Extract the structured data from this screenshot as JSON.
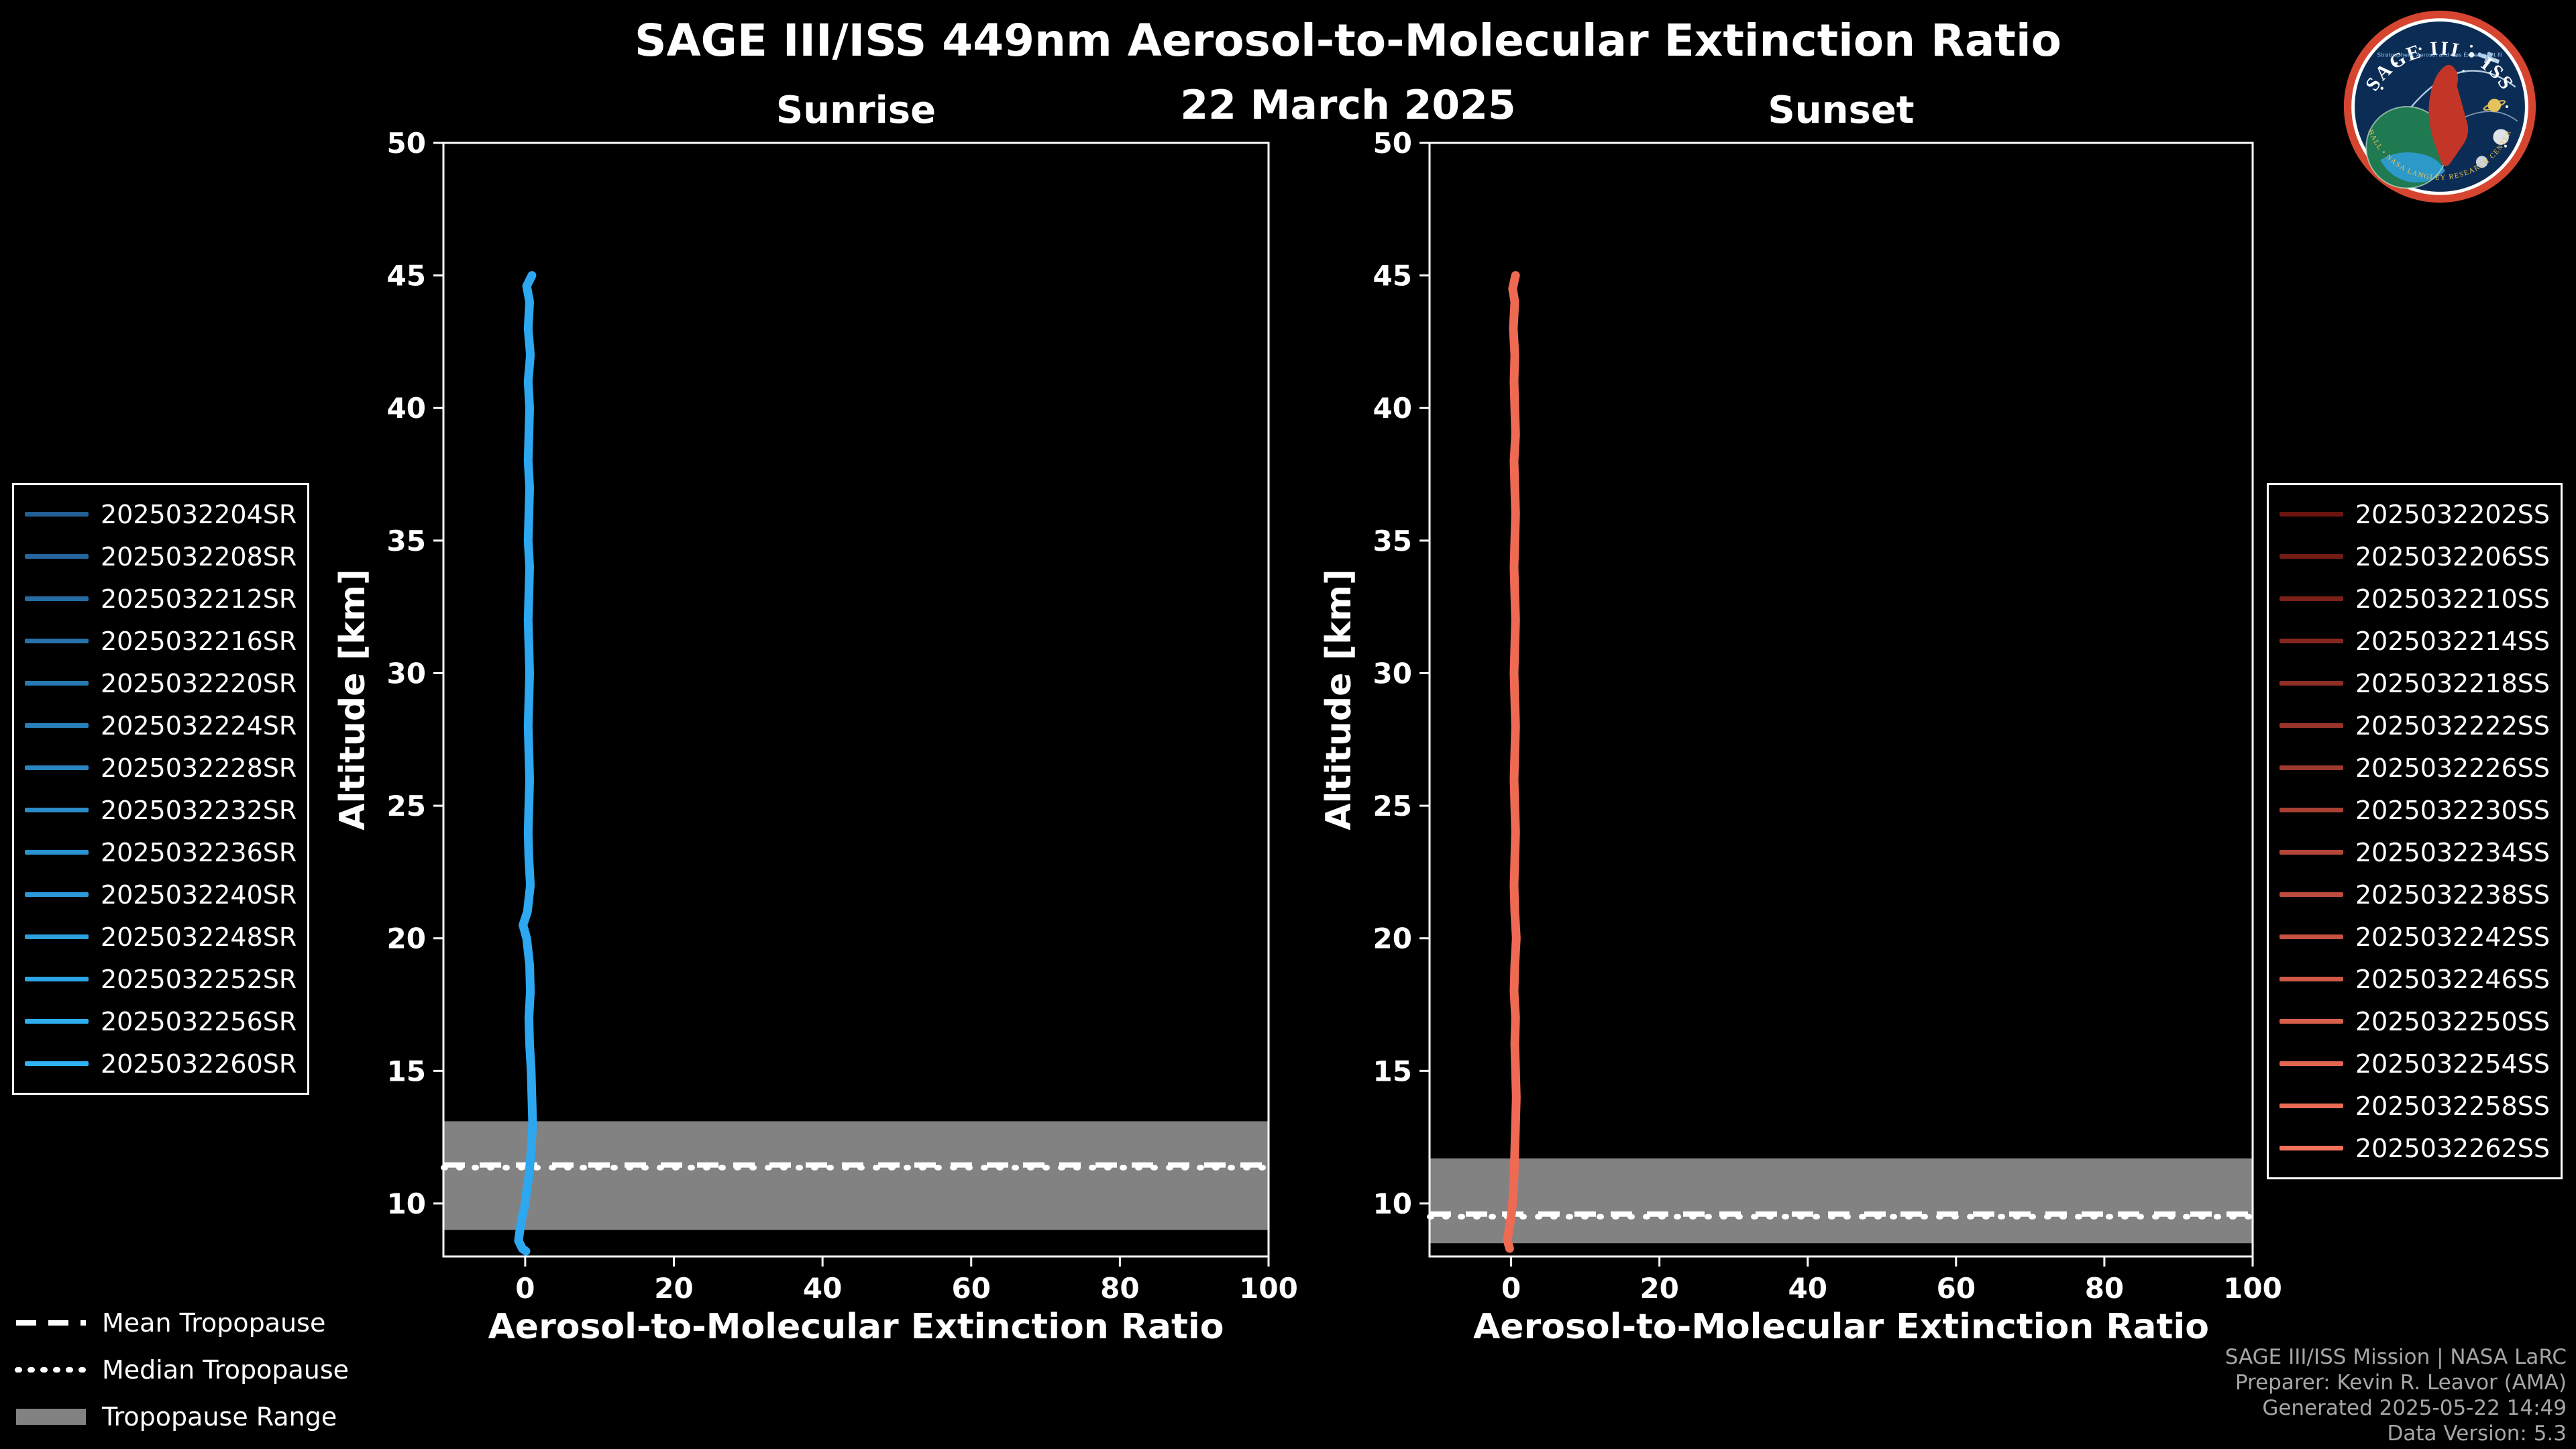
{
  "page": {
    "title": "SAGE III/ISS 449nm Aerosol-to-Molecular Extinction Ratio",
    "subtitle": "22 March 2025",
    "background": "#000000"
  },
  "style": {
    "band_color": "#828282",
    "axis_color": "#ffffff",
    "text_color": "#ffffff",
    "credit_color": "#a6a6a6"
  },
  "logo": {
    "title": "SAGE III • ISS",
    "subtitle": "Stratospheric Aerosol and Gas Experiment III",
    "ring_text": "BALL • NASA LANGLEY RESEARCH CENTER"
  },
  "tropopause_legend": {
    "mean_label": "Mean Tropopause",
    "median_label": "Median Tropopause",
    "range_label": "Tropopause Range"
  },
  "credits": {
    "lines": [
      "SAGE III/ISS Mission | NASA LaRC",
      "Preparer: Kevin R. Leavor (AMA)",
      "Generated 2025-05-22 14:49",
      "Data Version: 5.3"
    ]
  },
  "chart_data": [
    {
      "id": "sunrise",
      "type": "line",
      "title": "Sunrise",
      "xlabel": "Aerosol-to-Molecular Extinction Ratio",
      "ylabel": "Altitude [km]",
      "xlim": [
        -11,
        100
      ],
      "ylim": [
        8,
        50
      ],
      "xticks": [
        0,
        20,
        40,
        60,
        80,
        100
      ],
      "yticks": [
        10,
        15,
        20,
        25,
        30,
        35,
        40,
        45,
        50
      ],
      "grid": false,
      "legend_position": "outside-left",
      "series_names": [
        "2025032204SR",
        "2025032208SR",
        "2025032212SR",
        "2025032216SR",
        "2025032220SR",
        "2025032224SR",
        "2025032228SR",
        "2025032232SR",
        "2025032236SR",
        "2025032240SR",
        "2025032248SR",
        "2025032252SR",
        "2025032256SR",
        "2025032260SR"
      ],
      "series_color_start": "#235f93",
      "series_color_end": "#2fb2f6",
      "profile_color": "#2da7f0",
      "profile": [
        [
          45.0,
          0.9
        ],
        [
          44.6,
          0.2
        ],
        [
          44.0,
          0.6
        ],
        [
          43.0,
          0.4
        ],
        [
          42.0,
          0.7
        ],
        [
          41.0,
          0.4
        ],
        [
          40.0,
          0.6
        ],
        [
          39.0,
          0.5
        ],
        [
          38.0,
          0.4
        ],
        [
          37.0,
          0.6
        ],
        [
          36.0,
          0.5
        ],
        [
          35.0,
          0.4
        ],
        [
          34.0,
          0.6
        ],
        [
          33.0,
          0.5
        ],
        [
          32.0,
          0.4
        ],
        [
          31.0,
          0.5
        ],
        [
          30.0,
          0.6
        ],
        [
          29.0,
          0.5
        ],
        [
          28.0,
          0.4
        ],
        [
          27.0,
          0.5
        ],
        [
          26.0,
          0.6
        ],
        [
          25.0,
          0.5
        ],
        [
          24.0,
          0.4
        ],
        [
          23.0,
          0.5
        ],
        [
          22.0,
          0.7
        ],
        [
          21.0,
          0.3
        ],
        [
          20.5,
          -0.3
        ],
        [
          20.0,
          0.2
        ],
        [
          19.0,
          0.6
        ],
        [
          18.0,
          0.7
        ],
        [
          17.0,
          0.5
        ],
        [
          16.0,
          0.6
        ],
        [
          15.0,
          0.8
        ],
        [
          14.0,
          0.9
        ],
        [
          13.0,
          1.0
        ],
        [
          12.0,
          0.8
        ],
        [
          11.0,
          0.5
        ],
        [
          10.5,
          0.2
        ],
        [
          10.0,
          0.0
        ],
        [
          9.5,
          -0.4
        ],
        [
          9.0,
          -0.7
        ],
        [
          8.6,
          -0.9
        ],
        [
          8.3,
          -0.4
        ],
        [
          8.2,
          0.1
        ]
      ],
      "tropopause": {
        "range": [
          9.0,
          13.1
        ],
        "mean": 11.45,
        "median": 11.35
      }
    },
    {
      "id": "sunset",
      "type": "line",
      "title": "Sunset",
      "xlabel": "Aerosol-to-Molecular Extinction Ratio",
      "ylabel": "Altitude [km]",
      "xlim": [
        -11,
        100
      ],
      "ylim": [
        8,
        50
      ],
      "xticks": [
        0,
        20,
        40,
        60,
        80,
        100
      ],
      "yticks": [
        10,
        15,
        20,
        25,
        30,
        35,
        40,
        45,
        50
      ],
      "grid": false,
      "legend_position": "outside-right",
      "series_names": [
        "2025032202SS",
        "2025032206SS",
        "2025032210SS",
        "2025032214SS",
        "2025032218SS",
        "2025032222SS",
        "2025032226SS",
        "2025032230SS",
        "2025032234SS",
        "2025032238SS",
        "2025032242SS",
        "2025032246SS",
        "2025032250SS",
        "2025032254SS",
        "2025032258SS",
        "2025032262SS"
      ],
      "series_color_start": "#6a1510",
      "series_color_end": "#f4715a",
      "profile_color": "#ef6a52",
      "profile": [
        [
          45.0,
          0.6
        ],
        [
          44.5,
          0.2
        ],
        [
          44.0,
          0.5
        ],
        [
          43.0,
          0.3
        ],
        [
          42.0,
          0.5
        ],
        [
          41.0,
          0.4
        ],
        [
          40.0,
          0.5
        ],
        [
          39.0,
          0.6
        ],
        [
          38.0,
          0.4
        ],
        [
          37.0,
          0.5
        ],
        [
          36.0,
          0.6
        ],
        [
          35.0,
          0.5
        ],
        [
          34.0,
          0.4
        ],
        [
          33.0,
          0.5
        ],
        [
          32.0,
          0.6
        ],
        [
          31.0,
          0.5
        ],
        [
          30.0,
          0.4
        ],
        [
          29.0,
          0.5
        ],
        [
          28.0,
          0.6
        ],
        [
          27.0,
          0.5
        ],
        [
          26.0,
          0.4
        ],
        [
          25.0,
          0.5
        ],
        [
          24.0,
          0.6
        ],
        [
          23.0,
          0.5
        ],
        [
          22.0,
          0.4
        ],
        [
          21.0,
          0.5
        ],
        [
          20.0,
          0.7
        ],
        [
          19.0,
          0.5
        ],
        [
          18.0,
          0.4
        ],
        [
          17.0,
          0.6
        ],
        [
          16.0,
          0.5
        ],
        [
          15.0,
          0.6
        ],
        [
          14.0,
          0.7
        ],
        [
          13.0,
          0.6
        ],
        [
          12.0,
          0.5
        ],
        [
          11.0,
          0.4
        ],
        [
          10.0,
          0.2
        ],
        [
          9.5,
          0.0
        ],
        [
          9.0,
          -0.3
        ],
        [
          8.6,
          -0.5
        ],
        [
          8.3,
          -0.2
        ]
      ],
      "tropopause": {
        "range": [
          8.5,
          11.7
        ],
        "mean": 9.6,
        "median": 9.5
      }
    }
  ]
}
